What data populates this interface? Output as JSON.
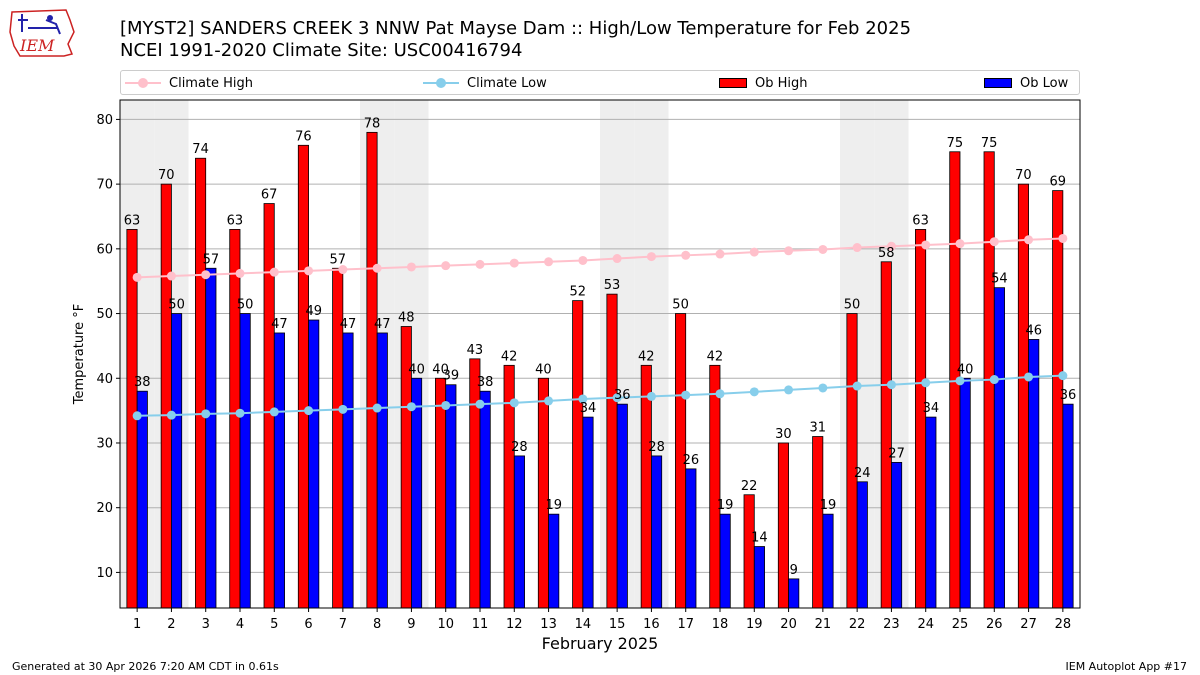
{
  "header": {
    "logo_text": "IEM",
    "title_line1": "[MYST2] SANDERS CREEK 3 NNW Pat Mayse Dam :: High/Low Temperature for Feb 2025",
    "title_line2": "NCEI 1991-2020 Climate Site: USC00416794"
  },
  "legend": {
    "climate_high": "Climate High",
    "climate_low": "Climate Low",
    "ob_high": "Ob High",
    "ob_low": "Ob Low"
  },
  "colors": {
    "climate_high": "#ffc0cb",
    "climate_low": "#87ceeb",
    "ob_high": "#ff0000",
    "ob_low": "#0000ff",
    "weekend_shade": "#eeeeee",
    "grid": "#b0b0b0"
  },
  "footer": {
    "generated": "Generated at 30 Apr 2026 7:20 AM CDT in 0.61s",
    "app": "IEM Autoplot App #17"
  },
  "chart_data": {
    "type": "bar",
    "xlabel": "February 2025",
    "ylabel": "Temperature °F",
    "ylim": [
      4.5,
      83
    ],
    "yticks": [
      10,
      20,
      30,
      40,
      50,
      60,
      70,
      80
    ],
    "grid": true,
    "legend_position": "top",
    "shaded_days": [
      1,
      2,
      8,
      9,
      15,
      16,
      22,
      23
    ],
    "categories": [
      "1",
      "2",
      "3",
      "4",
      "5",
      "6",
      "7",
      "8",
      "9",
      "10",
      "11",
      "12",
      "13",
      "14",
      "15",
      "16",
      "17",
      "18",
      "19",
      "20",
      "21",
      "22",
      "23",
      "24",
      "25",
      "26",
      "27",
      "28"
    ],
    "series": [
      {
        "name": "Ob High",
        "type": "bar",
        "values": [
          63,
          70,
          74,
          63,
          67,
          76,
          57,
          78,
          48,
          40,
          43,
          42,
          40,
          52,
          53,
          42,
          50,
          42,
          22,
          30,
          31,
          50,
          58,
          63,
          75,
          75,
          70,
          69
        ]
      },
      {
        "name": "Ob Low",
        "type": "bar",
        "values": [
          38,
          50,
          57,
          50,
          47,
          49,
          47,
          47,
          40,
          39,
          38,
          28,
          19,
          34,
          36,
          28,
          26,
          19,
          14,
          9,
          19,
          24,
          27,
          34,
          40,
          54,
          46,
          36
        ]
      },
      {
        "name": "Climate High",
        "type": "line",
        "values": [
          55.6,
          55.8,
          56.0,
          56.2,
          56.4,
          56.6,
          56.8,
          57.0,
          57.2,
          57.4,
          57.6,
          57.8,
          58.0,
          58.2,
          58.5,
          58.8,
          59.0,
          59.2,
          59.5,
          59.7,
          59.9,
          60.2,
          60.4,
          60.6,
          60.8,
          61.1,
          61.4,
          61.6
        ]
      },
      {
        "name": "Climate Low",
        "type": "line",
        "values": [
          34.2,
          34.3,
          34.5,
          34.6,
          34.8,
          35.0,
          35.2,
          35.4,
          35.6,
          35.8,
          36.0,
          36.2,
          36.5,
          36.8,
          37.0,
          37.2,
          37.4,
          37.6,
          37.9,
          38.2,
          38.5,
          38.8,
          39.0,
          39.3,
          39.6,
          39.8,
          40.2,
          40.4
        ]
      }
    ]
  }
}
